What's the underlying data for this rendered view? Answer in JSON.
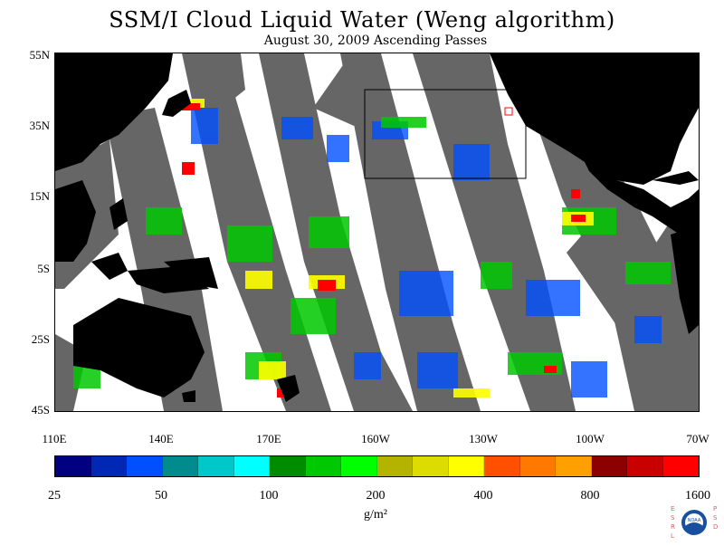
{
  "title": "SSM/I Cloud Liquid Water (Weng algorithm)",
  "subtitle": "August 30, 2009  Ascending Passes",
  "lat_labels": [
    "55N",
    "35N",
    "15N",
    "5S",
    "25S",
    "45S"
  ],
  "lon_labels": [
    "110E",
    "140E",
    "170E",
    "160W",
    "130W",
    "100W",
    "70W"
  ],
  "colorbar": {
    "ticks": [
      "25",
      "50",
      "100",
      "200",
      "400",
      "800",
      "1600"
    ],
    "units": "g/m²",
    "colors": [
      "#000080",
      "#0028b4",
      "#0050ff",
      "#008c8c",
      "#00c8c8",
      "#00ffff",
      "#008c00",
      "#00c800",
      "#00ff00",
      "#b4b400",
      "#dcdc00",
      "#ffff00",
      "#ff5000",
      "#ff7800",
      "#ffa000",
      "#8c0000",
      "#c80000",
      "#ff0000"
    ]
  },
  "logo": {
    "left_letters": "ESRL",
    "right_letters": "PSD",
    "center_text": "NOAA"
  },
  "colors": {
    "land": "#000000",
    "no_data": "#666666",
    "ocean_clear": "#ffffff"
  }
}
